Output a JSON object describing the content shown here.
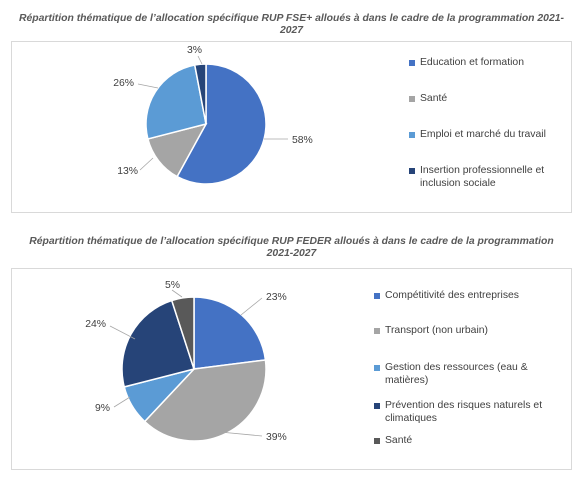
{
  "charts": [
    {
      "title": "Répartition thématique de l’allocation spécifique RUP FSE+ alloués à dans le cadre de la programmation 2021-2027",
      "title_lines": [
        "Répartition thématique de l’allocation spécifique RUP FSE+ alloués à dans le cadre de la programmation 2021-",
        "2027"
      ]
    },
    {
      "title": "Répartition thématique de l’allocation spécifique RUP FEDER alloués à dans le cadre de la programmation 2021-2027",
      "title_lines": [
        "Répartition thématique de l’allocation spécifique RUP FEDER alloués à dans le cadre de la programmation",
        "2021-2027"
      ]
    }
  ],
  "chart_data": [
    {
      "type": "pie",
      "title": "Répartition thématique de l’allocation spécifique RUP FSE+ alloués à dans le cadre de la programmation 2021-2027",
      "categories": [
        "Education et formation",
        "Santé",
        "Emploi et marché du travail",
        "Insertion professionnelle et inclusion sociale"
      ],
      "values": [
        58,
        13,
        26,
        3
      ],
      "labels": [
        "58%",
        "13%",
        "26%",
        "3%"
      ],
      "colors": [
        "#4472c4",
        "#a5a5a5",
        "#5b9bd5",
        "#264478"
      ],
      "legend_placement": "right"
    },
    {
      "type": "pie",
      "title": "Répartition thématique de l’allocation spécifique RUP FEDER alloués à dans le cadre de la programmation 2021-2027",
      "categories": [
        "Compétitivité des entreprises",
        "Transport (non urbain)",
        "Gestion des ressources (eau & matières)",
        "Prévention des risques naturels et climatiques",
        "Santé"
      ],
      "values": [
        23,
        39,
        9,
        24,
        5
      ],
      "labels": [
        "23%",
        "39%",
        "9%",
        "24%",
        "5%"
      ],
      "colors": [
        "#4472c4",
        "#a5a5a5",
        "#5b9bd5",
        "#264478",
        "#595959"
      ],
      "legend_placement": "right"
    }
  ]
}
